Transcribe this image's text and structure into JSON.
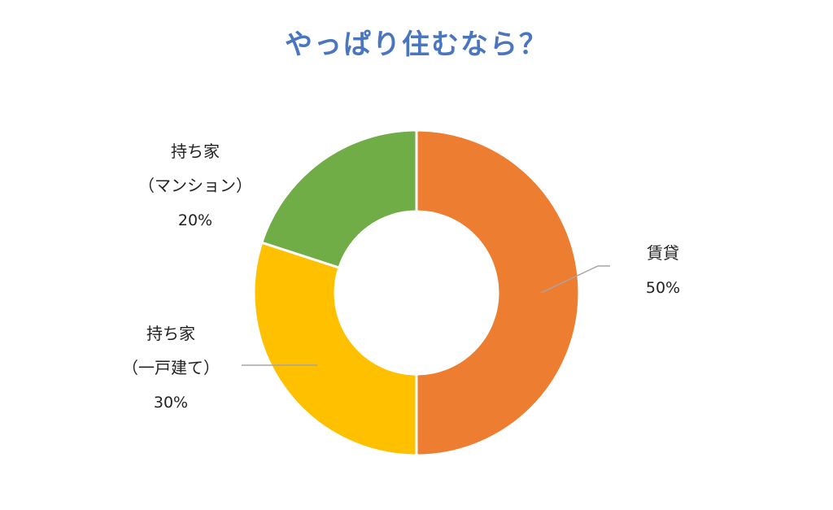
{
  "chart_data": {
    "type": "pie",
    "donut": true,
    "title": "やっぱり住むなら？",
    "slices": [
      {
        "label": "賃貸",
        "label_lines": [
          "賃貸"
        ],
        "value": 50,
        "value_label": "50%",
        "color": "#ed7d31"
      },
      {
        "label": "持ち家（一戸建て）",
        "label_lines": [
          "持ち家",
          "（一戸建て）"
        ],
        "value": 30,
        "value_label": "30%",
        "color": "#ffc000"
      },
      {
        "label": "持ち家（マンション）",
        "label_lines": [
          "持ち家",
          "（マンション）"
        ],
        "value": 20,
        "value_label": "20%",
        "color": "#70ad47"
      }
    ],
    "legend": "none"
  }
}
